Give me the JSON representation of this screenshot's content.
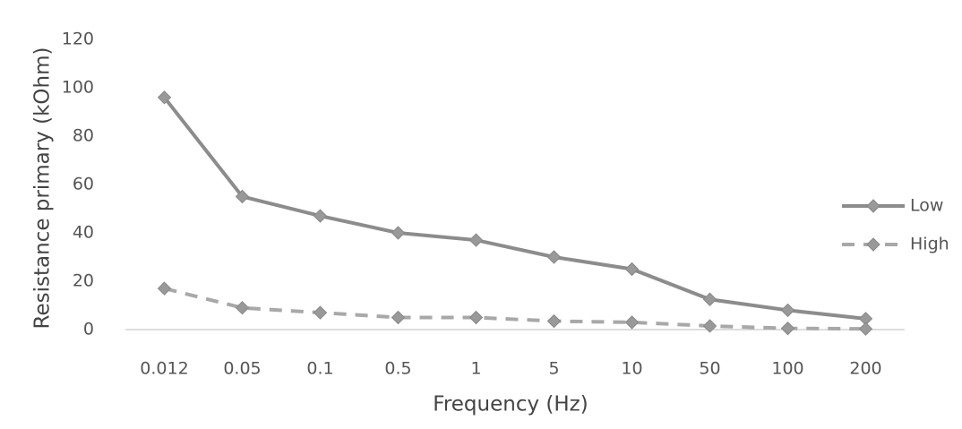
{
  "chart_data": {
    "type": "line",
    "xlabel": "Frequency (Hz)",
    "ylabel": "Resistance primary (kOhm)",
    "categories": [
      "0.012",
      "0.05",
      "0.1",
      "0.5",
      "1",
      "5",
      "10",
      "50",
      "100",
      "200"
    ],
    "series": [
      {
        "name": "Low",
        "color": "#8c8c8c",
        "line_style": "solid",
        "values": [
          96,
          55,
          47,
          40,
          37,
          30,
          25,
          12.5,
          8,
          4.5
        ]
      },
      {
        "name": "High",
        "color": "#a8a8a8",
        "line_style": "dashed",
        "values": [
          17,
          9,
          7,
          5,
          5,
          3.5,
          3,
          1.5,
          0.5,
          0.3
        ]
      }
    ],
    "ylim": [
      0,
      120
    ],
    "yticks": [
      0,
      20,
      40,
      60,
      80,
      100,
      120
    ],
    "grid": false,
    "legend": "right"
  }
}
